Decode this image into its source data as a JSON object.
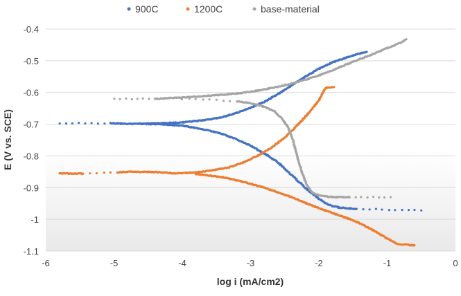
{
  "chart_data": {
    "type": "scatter",
    "title": "",
    "xlabel": "log i (mA/cm2)",
    "ylabel": "E (V vs. SCE)",
    "xlim": [
      -6,
      0
    ],
    "ylim": [
      -1.1,
      -0.4
    ],
    "x_ticks": [
      -6,
      -5,
      -4,
      -3,
      -2,
      -1,
      0
    ],
    "y_ticks": [
      -0.4,
      -0.5,
      -0.6,
      -0.7,
      -0.8,
      -0.9,
      -1,
      -1.1
    ],
    "x_tick_labels": [
      "-6",
      "-5",
      "-4",
      "-3",
      "-2",
      "-1",
      "0"
    ],
    "y_tick_labels": [
      "-0.4",
      "-0.5",
      "-0.6",
      "-0.7",
      "-0.8",
      "-0.9",
      "-1",
      "-1.1"
    ],
    "grid": "horizontal",
    "background": "light gray gradient at bottom",
    "legend_position": "top",
    "series": [
      {
        "name": "900C",
        "color": "#4472C4",
        "branches": [
          {
            "part": "anodic",
            "points": [
              [
                -5.8,
                -0.697
              ],
              [
                -5.05,
                -0.697
              ],
              [
                -4.95,
                -0.698
              ],
              [
                -4.75,
                -0.699
              ],
              [
                -4.55,
                -0.698
              ],
              [
                -4.35,
                -0.697
              ],
              [
                -4.2,
                -0.696
              ],
              [
                -4.0,
                -0.694
              ],
              [
                -3.8,
                -0.69
              ],
              [
                -3.6,
                -0.685
              ],
              [
                -3.4,
                -0.677
              ],
              [
                -3.2,
                -0.664
              ],
              [
                -3.0,
                -0.648
              ],
              [
                -2.8,
                -0.63
              ],
              [
                -2.6,
                -0.605
              ],
              [
                -2.4,
                -0.578
              ],
              [
                -2.2,
                -0.55
              ],
              [
                -2.0,
                -0.525
              ],
              [
                -1.8,
                -0.505
              ],
              [
                -1.6,
                -0.49
              ],
              [
                -1.45,
                -0.48
              ],
              [
                -1.3,
                -0.472
              ]
            ]
          },
          {
            "part": "cathodic",
            "points": [
              [
                -4.6,
                -0.699
              ],
              [
                -4.3,
                -0.7
              ],
              [
                -4.0,
                -0.705
              ],
              [
                -3.8,
                -0.712
              ],
              [
                -3.6,
                -0.72
              ],
              [
                -3.4,
                -0.732
              ],
              [
                -3.2,
                -0.748
              ],
              [
                -3.0,
                -0.768
              ],
              [
                -2.8,
                -0.792
              ],
              [
                -2.6,
                -0.82
              ],
              [
                -2.45,
                -0.85
              ],
              [
                -2.3,
                -0.88
              ],
              [
                -2.15,
                -0.91
              ],
              [
                -2.0,
                -0.935
              ],
              [
                -1.85,
                -0.955
              ],
              [
                -1.7,
                -0.963
              ],
              [
                -1.45,
                -0.967
              ],
              [
                -0.5,
                -0.972
              ]
            ]
          }
        ]
      },
      {
        "name": "1200C",
        "color": "#ED7D31",
        "branches": [
          {
            "part": "anodic",
            "points": [
              [
                -5.8,
                -0.855
              ],
              [
                -5.45,
                -0.856
              ],
              [
                -4.95,
                -0.852
              ],
              [
                -4.85,
                -0.85
              ],
              [
                -4.5,
                -0.85
              ],
              [
                -4.3,
                -0.852
              ],
              [
                -4.1,
                -0.855
              ],
              [
                -3.9,
                -0.853
              ],
              [
                -3.7,
                -0.85
              ],
              [
                -3.5,
                -0.843
              ],
              [
                -3.3,
                -0.835
              ],
              [
                -3.1,
                -0.82
              ],
              [
                -2.9,
                -0.8
              ],
              [
                -2.7,
                -0.775
              ],
              [
                -2.5,
                -0.742
              ],
              [
                -2.3,
                -0.7
              ],
              [
                -2.15,
                -0.665
              ],
              [
                -2.0,
                -0.625
              ],
              [
                -1.9,
                -0.585
              ],
              [
                -1.78,
                -0.583
              ]
            ]
          },
          {
            "part": "cathodic",
            "points": [
              [
                -3.8,
                -0.857
              ],
              [
                -3.6,
                -0.862
              ],
              [
                -3.4,
                -0.868
              ],
              [
                -3.2,
                -0.877
              ],
              [
                -3.0,
                -0.888
              ],
              [
                -2.8,
                -0.9
              ],
              [
                -2.6,
                -0.915
              ],
              [
                -2.4,
                -0.93
              ],
              [
                -2.2,
                -0.948
              ],
              [
                -2.0,
                -0.965
              ],
              [
                -1.8,
                -0.98
              ],
              [
                -1.6,
                -0.995
              ],
              [
                -1.4,
                -1.012
              ],
              [
                -1.2,
                -1.035
              ],
              [
                -1.0,
                -1.06
              ],
              [
                -0.85,
                -1.078
              ],
              [
                -0.6,
                -1.082
              ]
            ]
          }
        ]
      },
      {
        "name": "base-material",
        "color": "#A5A5A5",
        "branches": [
          {
            "part": "anodic",
            "points": [
              [
                -5.0,
                -0.62
              ],
              [
                -4.4,
                -0.62
              ],
              [
                -4.2,
                -0.618
              ],
              [
                -4.0,
                -0.616
              ],
              [
                -3.8,
                -0.613
              ],
              [
                -3.6,
                -0.61
              ],
              [
                -3.4,
                -0.607
              ],
              [
                -3.2,
                -0.603
              ],
              [
                -3.0,
                -0.598
              ],
              [
                -2.8,
                -0.59
              ],
              [
                -2.6,
                -0.582
              ],
              [
                -2.4,
                -0.572
              ],
              [
                -2.2,
                -0.56
              ],
              [
                -2.0,
                -0.546
              ],
              [
                -1.8,
                -0.53
              ],
              [
                -1.6,
                -0.512
              ],
              [
                -1.4,
                -0.495
              ],
              [
                -1.2,
                -0.478
              ],
              [
                -1.0,
                -0.46
              ],
              [
                -0.8,
                -0.443
              ],
              [
                -0.72,
                -0.432
              ]
            ]
          },
          {
            "part": "cathodic",
            "points": [
              [
                -4.0,
                -0.62
              ],
              [
                -3.6,
                -0.623
              ],
              [
                -3.2,
                -0.628
              ],
              [
                -3.0,
                -0.634
              ],
              [
                -2.8,
                -0.645
              ],
              [
                -2.65,
                -0.66
              ],
              [
                -2.55,
                -0.68
              ],
              [
                -2.45,
                -0.71
              ],
              [
                -2.38,
                -0.75
              ],
              [
                -2.32,
                -0.8
              ],
              [
                -2.25,
                -0.85
              ],
              [
                -2.18,
                -0.89
              ],
              [
                -2.1,
                -0.915
              ],
              [
                -2.0,
                -0.925
              ],
              [
                -1.8,
                -0.93
              ],
              [
                -1.55,
                -0.93
              ],
              [
                -0.95,
                -0.93
              ]
            ]
          }
        ]
      }
    ]
  }
}
